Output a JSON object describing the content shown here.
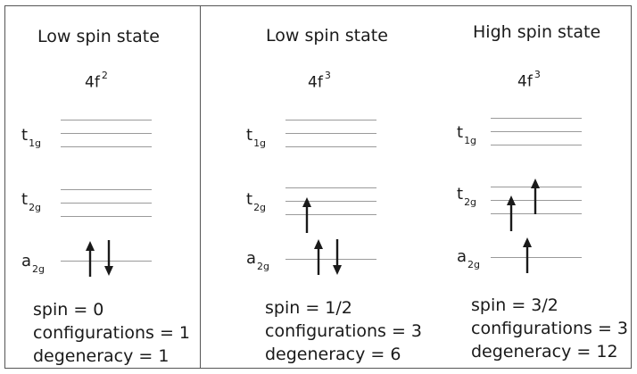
{
  "panels": [
    {
      "title": "Low spin state",
      "config": {
        "base": "4f",
        "exp": "2"
      },
      "levels": {
        "t1g": {
          "main": "t",
          "sub": "1g"
        },
        "t2g": {
          "main": "t",
          "sub": "2g"
        },
        "a2g": {
          "main": "a",
          "sub": "2g"
        }
      },
      "electrons": {
        "t2g": [],
        "a2g": [
          "up",
          "down"
        ]
      },
      "summary": {
        "spin": "spin = 0",
        "configurations": "configurations = 1",
        "degeneracy": "degeneracy = 1"
      }
    },
    {
      "title": "Low spin state",
      "config": {
        "base": "4f",
        "exp": "3"
      },
      "levels": {
        "t1g": {
          "main": "t",
          "sub": "1g"
        },
        "t2g": {
          "main": "t",
          "sub": "2g"
        },
        "a2g": {
          "main": "a",
          "sub": "2g"
        }
      },
      "electrons": {
        "t2g": [
          "up"
        ],
        "a2g": [
          "up",
          "down"
        ]
      },
      "summary": {
        "spin": "spin = 1/2",
        "configurations": "configurations = 3",
        "degeneracy": "degeneracy = 6"
      }
    },
    {
      "title": "High spin state",
      "config": {
        "base": "4f",
        "exp": "3"
      },
      "levels": {
        "t1g": {
          "main": "t",
          "sub": "1g"
        },
        "t2g": {
          "main": "t",
          "sub": "2g"
        },
        "a2g": {
          "main": "a",
          "sub": "2g"
        }
      },
      "electrons": {
        "t2g": [
          "up",
          "up"
        ],
        "a2g": [
          "up"
        ]
      },
      "summary": {
        "spin": "spin = 3/2",
        "configurations": "configurations = 3",
        "degeneracy": "degeneracy = 12"
      }
    }
  ]
}
